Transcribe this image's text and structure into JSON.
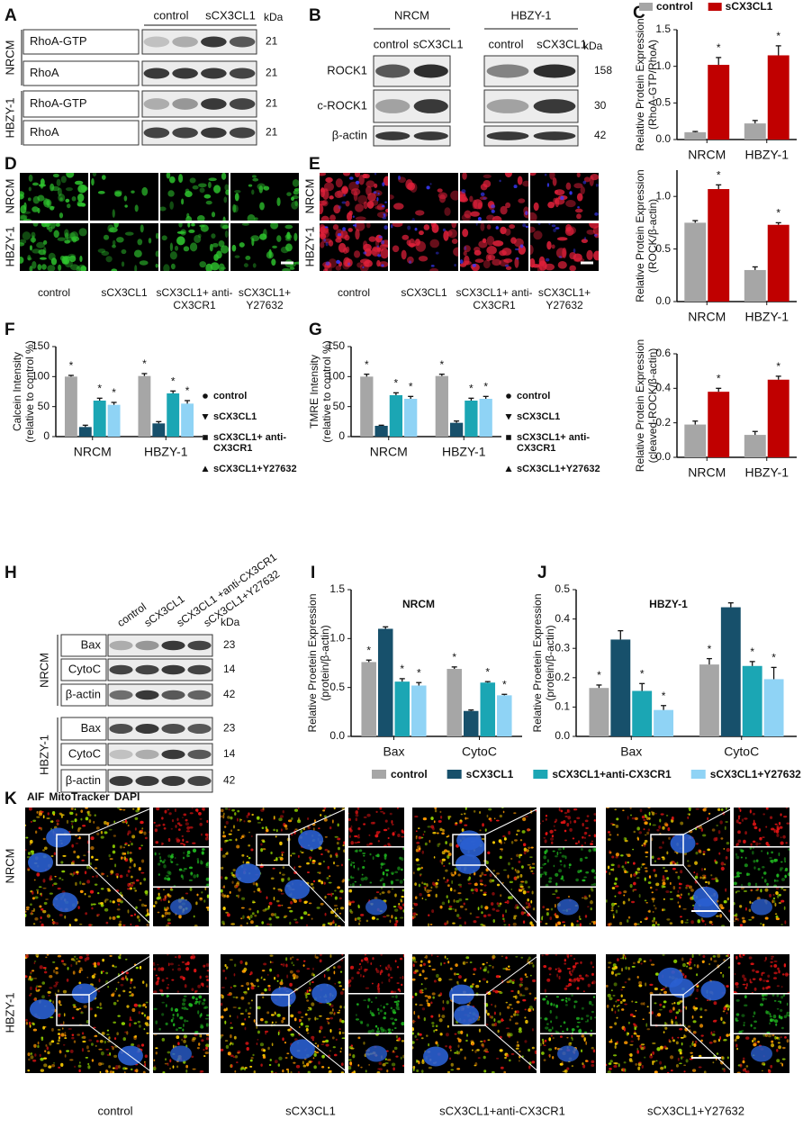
{
  "blots": {
    "A": {
      "letter": "A",
      "columns": [
        "control",
        "sCX3CL1"
      ],
      "unit": "kDa",
      "groups": [
        {
          "name": "NRCM",
          "rows": [
            {
              "label": "RhoA-GTP",
              "kda": 21
            },
            {
              "label": "RhoA",
              "kda": 21
            }
          ]
        },
        {
          "name": "HBZY-1",
          "rows": [
            {
              "label": "RhoA-GTP",
              "kda": 21
            },
            {
              "label": "RhoA",
              "kda": 21
            }
          ]
        }
      ]
    },
    "B": {
      "letter": "B",
      "unit": "kDa",
      "groups": [
        {
          "name": "NRCM",
          "columns": [
            "control",
            "sCX3CL1"
          ]
        },
        {
          "name": "HBZY-1",
          "columns": [
            "control",
            "sCX3CL1"
          ]
        }
      ],
      "rows": [
        {
          "label": "ROCK1",
          "kda": 158
        },
        {
          "label": "c-ROCK1",
          "kda": 30
        },
        {
          "label": "β-actin",
          "kda": 42
        }
      ]
    },
    "H": {
      "letter": "H",
      "columns": [
        "control",
        "sCX3CL1",
        "sCX3CL1 +anti-CX3CR1",
        "sCX3CL1+Y27632"
      ],
      "unit": "kDa",
      "groups": [
        {
          "name": "NRCM",
          "rows": [
            {
              "label": "Bax",
              "kda": 23
            },
            {
              "label": "CytoC",
              "kda": 14
            },
            {
              "label": "β-actin",
              "kda": 42
            }
          ]
        },
        {
          "name": "HBZY-1",
          "rows": [
            {
              "label": "Bax",
              "kda": 23
            },
            {
              "label": "CytoC",
              "kda": 14
            },
            {
              "label": "β-actin",
              "kda": 42
            }
          ]
        }
      ]
    }
  },
  "micrographs": {
    "D": {
      "letter": "D",
      "rows": [
        "NRCM",
        "HBZY-1"
      ],
      "columns": [
        "control",
        "sCX3CL1",
        "sCX3CL1+ anti-CX3CR1",
        "sCX3CL1+ Y27632"
      ]
    },
    "E": {
      "letter": "E",
      "rows": [
        "NRCM",
        "HBZY-1"
      ],
      "columns": [
        "control",
        "sCX3CL1",
        "sCX3CL1+ anti-CX3CR1",
        "sCX3CL1+ Y27632"
      ]
    },
    "K": {
      "letter": "K",
      "stains": [
        {
          "text": "AIF",
          "color": "#1fb51f"
        },
        {
          "text": "MitoTracker",
          "color": "#e01414"
        },
        {
          "text": "DAPI",
          "color": "#2626b0"
        }
      ],
      "rows": [
        "NRCM",
        "HBZY-1"
      ],
      "columns": [
        "control",
        "sCX3CL1",
        "sCX3CL1+anti-CX3CR1",
        "sCX3CL1+Y27632"
      ]
    }
  },
  "chart_data": [
    {
      "type": "bar",
      "letter": "C",
      "legend": "top",
      "ylabel": [
        "Relative Protein Expression",
        "(RhoA-GTP/RhoA)"
      ],
      "categories": [
        "NRCM",
        "HBZY-1"
      ],
      "series": [
        {
          "name": "control",
          "color": "#a6a6a6",
          "values": [
            0.1,
            0.22
          ],
          "errors": [
            0.01,
            0.04
          ]
        },
        {
          "name": "sCX3CL1",
          "color": "#c00000",
          "values": [
            1.02,
            1.15
          ],
          "errors": [
            0.1,
            0.13
          ],
          "significance": [
            "*",
            "*"
          ]
        }
      ],
      "ylim": [
        0,
        1.5
      ],
      "yticks": [
        {
          "value": 0,
          "label": "0.0"
        },
        0.5,
        {
          "value": 1,
          "label": "1.0"
        },
        1.5
      ]
    },
    {
      "type": "bar",
      "ylabel": [
        "Relative Protein Expression",
        "(ROCK/β-actin)"
      ],
      "categories": [
        "NRCM",
        "HBZY-1"
      ],
      "series": [
        {
          "color": "#a6a6a6",
          "values": [
            0.75,
            0.3
          ],
          "errors": [
            0.02,
            0.03
          ]
        },
        {
          "color": "#c00000",
          "values": [
            1.07,
            0.73
          ],
          "errors": [
            0.04,
            0.02
          ],
          "significance": [
            "*",
            "*"
          ]
        }
      ],
      "ylim": [
        0,
        1.25
      ],
      "yticks": [
        {
          "value": 0,
          "label": "0.0"
        },
        0.5,
        {
          "value": 1,
          "label": "1.0"
        }
      ]
    },
    {
      "type": "bar",
      "ylabel": [
        "Relative Protein Expression",
        "(cleaved-ROCK/β-actin)"
      ],
      "categories": [
        "NRCM",
        "HBZY-1"
      ],
      "series": [
        {
          "color": "#a6a6a6",
          "values": [
            0.19,
            0.13
          ],
          "errors": [
            0.02,
            0.02
          ]
        },
        {
          "color": "#c00000",
          "values": [
            0.38,
            0.45
          ],
          "errors": [
            0.02,
            0.02
          ],
          "significance": [
            "*",
            "*"
          ]
        }
      ],
      "ylim": [
        0,
        0.6
      ],
      "yticks": [
        {
          "value": 0,
          "label": "0.0"
        },
        0.2,
        0.4,
        0.6
      ]
    },
    {
      "type": "bar",
      "letter": "F",
      "legend": "right",
      "ylabel": [
        "Calcein Intensity",
        "(relative to control %)"
      ],
      "categories": [
        "NRCM",
        "HBZY-1"
      ],
      "series": [
        {
          "name": "control",
          "marker": "circle",
          "color": "#a6a6a6",
          "values": [
            100,
            101
          ],
          "errors": [
            2,
            4
          ],
          "significance": [
            "*",
            "*"
          ]
        },
        {
          "name": "sCX3CL1",
          "marker": "triangle-down",
          "color": "#17506b",
          "values": [
            16,
            22
          ],
          "errors": [
            3,
            3
          ]
        },
        {
          "name": "sCX3CL1+ anti-CX3CR1",
          "marker": "square",
          "color": "#1ba6b4",
          "values": [
            60,
            72
          ],
          "errors": [
            4,
            4
          ],
          "significance": [
            "*",
            "*"
          ]
        },
        {
          "name": "sCX3CL1+Y27632",
          "marker": "triangle-up",
          "color": "#8fd3f5",
          "values": [
            53,
            55
          ],
          "errors": [
            4,
            5
          ],
          "significance": [
            "*",
            "*"
          ]
        }
      ],
      "ylim": [
        0,
        150
      ],
      "yticks": [
        0,
        50,
        100,
        150
      ]
    },
    {
      "type": "bar",
      "letter": "G",
      "legend": "right",
      "ylabel": [
        "TMRE Intensity",
        "(relative to control %)"
      ],
      "categories": [
        "NRCM",
        "HBZY-1"
      ],
      "series": [
        {
          "name": "control",
          "marker": "circle",
          "color": "#a6a6a6",
          "values": [
            100,
            101
          ],
          "errors": [
            4,
            3
          ],
          "significance": [
            "*",
            "*"
          ]
        },
        {
          "name": "sCX3CL1",
          "marker": "triangle-down",
          "color": "#17506b",
          "values": [
            18,
            23
          ],
          "errors": [
            1,
            3
          ]
        },
        {
          "name": "sCX3CL1+ anti-CX3CR1",
          "marker": "square",
          "color": "#1ba6b4",
          "values": [
            69,
            60
          ],
          "errors": [
            4,
            4
          ],
          "significance": [
            "*",
            "*"
          ]
        },
        {
          "name": "sCX3CL1+Y27632",
          "marker": "triangle-up",
          "color": "#8fd3f5",
          "values": [
            63,
            63
          ],
          "errors": [
            4,
            4
          ],
          "significance": [
            "*",
            "*"
          ]
        }
      ],
      "ylim": [
        0,
        150
      ],
      "yticks": [
        0,
        50,
        100,
        150
      ]
    },
    {
      "type": "bar",
      "letter": "I",
      "title": "NRCM",
      "legend": "bottom",
      "ylabel": [
        "Relative Proetein Expression",
        "(protein/β-actin)"
      ],
      "categories": [
        "Bax",
        "CytoC"
      ],
      "series": [
        {
          "name": "control",
          "color": "#a6a6a6",
          "values": [
            0.76,
            0.69
          ],
          "errors": [
            0.02,
            0.02
          ],
          "significance": [
            "*",
            "*"
          ]
        },
        {
          "name": "sCX3CL1",
          "color": "#17506b",
          "values": [
            1.1,
            0.26
          ],
          "errors": [
            0.02,
            0.01
          ]
        },
        {
          "name": "sCX3CL1+anti-CX3CR1",
          "color": "#1ba6b4",
          "values": [
            0.56,
            0.55
          ],
          "errors": [
            0.03,
            0.01
          ],
          "significance": [
            "*",
            "*"
          ]
        },
        {
          "name": "sCX3CL1+Y27632",
          "color": "#8fd3f5",
          "values": [
            0.52,
            0.42
          ],
          "errors": [
            0.03,
            0.01
          ],
          "significance": [
            "*",
            "*"
          ]
        }
      ],
      "ylim": [
        0,
        1.5
      ],
      "yticks": [
        {
          "value": 0,
          "label": "0.0"
        },
        0.5,
        {
          "value": 1,
          "label": "1.0"
        },
        1.5
      ]
    },
    {
      "type": "bar",
      "letter": "J",
      "title": "HBZY-1",
      "ylabel": [
        "Relative Proetein Expression",
        "(protein/β-actin)"
      ],
      "categories": [
        "Bax",
        "CytoC"
      ],
      "series": [
        {
          "color": "#a6a6a6",
          "values": [
            0.165,
            0.245
          ],
          "errors": [
            0.01,
            0.02
          ],
          "significance": [
            "*",
            "*"
          ]
        },
        {
          "color": "#17506b",
          "values": [
            0.33,
            0.44
          ],
          "errors": [
            0.03,
            0.015
          ]
        },
        {
          "color": "#1ba6b4",
          "values": [
            0.155,
            0.24
          ],
          "errors": [
            0.025,
            0.015
          ],
          "significance": [
            "*",
            "*"
          ]
        },
        {
          "color": "#8fd3f5",
          "values": [
            0.09,
            0.195
          ],
          "errors": [
            0.015,
            0.04
          ],
          "significance": [
            "*",
            "*"
          ]
        }
      ],
      "ylim": [
        0,
        0.5
      ],
      "yticks": [
        {
          "value": 0,
          "label": "0.0"
        },
        0.1,
        0.2,
        0.3,
        0.4,
        0.5
      ]
    }
  ]
}
